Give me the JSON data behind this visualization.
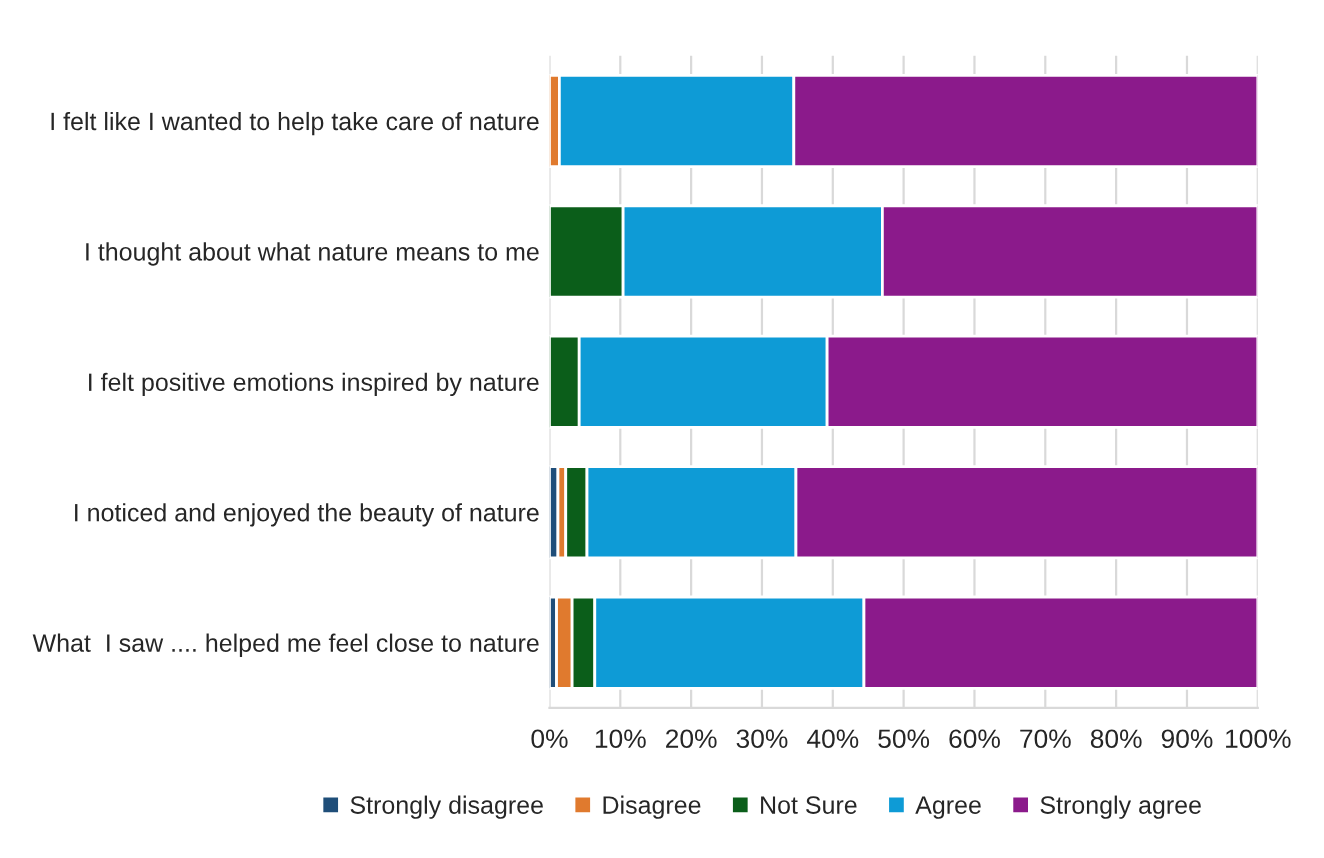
{
  "chart_data": {
    "type": "bar",
    "orientation": "horizontal",
    "stacked": true,
    "categories": [
      "I felt like I wanted to help take care of nature",
      "I thought about what nature means to me",
      "I felt positive emotions inspired by nature",
      "I noticed and enjoyed the beauty of nature",
      "What  I saw .... helped me feel close to nature"
    ],
    "series": [
      {
        "name": "Strongly disagree",
        "color": "#1f4e79",
        "values": [
          0,
          0,
          0,
          1.2,
          1.0
        ]
      },
      {
        "name": "Disagree",
        "color": "#e07a2e",
        "values": [
          1.4,
          0,
          0,
          1.1,
          2.2
        ]
      },
      {
        "name": "Not Sure",
        "color": "#0b5e1a",
        "values": [
          0,
          10.4,
          4.2,
          3.0,
          3.2
        ]
      },
      {
        "name": "Agree",
        "color": "#0e9bd6",
        "values": [
          33.1,
          36.6,
          35.0,
          29.5,
          38.0
        ]
      },
      {
        "name": "Strongly agree",
        "color": "#8b1a8b",
        "values": [
          65.5,
          53.0,
          60.8,
          65.2,
          55.6
        ]
      }
    ],
    "xlim": [
      0,
      100
    ],
    "xticks": [
      {
        "value": 0,
        "label": "0%"
      },
      {
        "value": 10,
        "label": "10%"
      },
      {
        "value": 20,
        "label": "20%"
      },
      {
        "value": 30,
        "label": "30%"
      },
      {
        "value": 40,
        "label": "40%"
      },
      {
        "value": 50,
        "label": "50%"
      },
      {
        "value": 60,
        "label": "60%"
      },
      {
        "value": 70,
        "label": "70%"
      },
      {
        "value": 80,
        "label": "80%"
      },
      {
        "value": 90,
        "label": "90%"
      },
      {
        "value": 100,
        "label": "100%"
      }
    ],
    "grid": "x",
    "legend": "bottom"
  }
}
